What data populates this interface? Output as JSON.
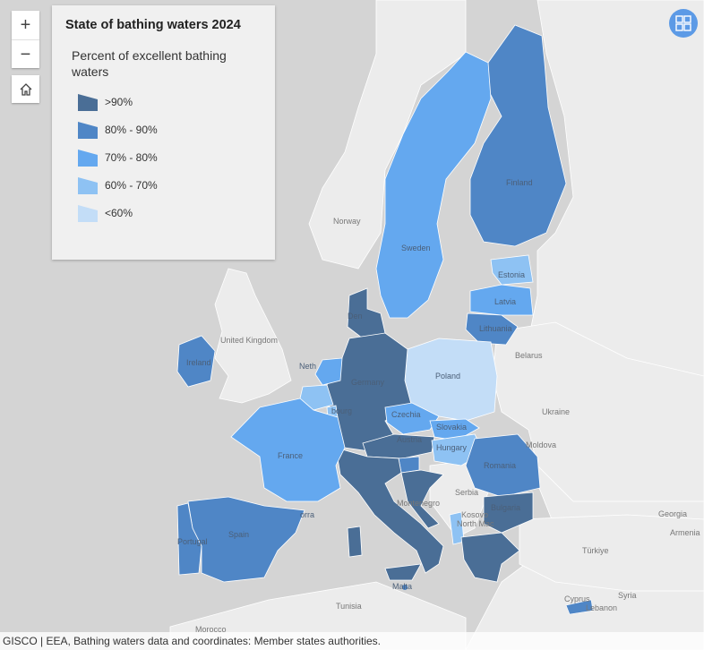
{
  "legend": {
    "title": "State of bathing waters 2024",
    "subtitle": "Percent of excellent bathing waters",
    "classes": [
      {
        "label": ">90%",
        "color": "#4a6e96"
      },
      {
        "label": "80% - 90%",
        "color": "#4f86c6"
      },
      {
        "label": "70% - 80%",
        "color": "#64a8ef"
      },
      {
        "label": "60% - 70%",
        "color": "#8ec2f3"
      },
      {
        "label": "<60%",
        "color": "#c3ddf7"
      }
    ]
  },
  "controls": {
    "zoom_in": "+",
    "zoom_out": "−"
  },
  "attribution": "GISCO | EEA, Bathing waters data and coordinates: Member states authorities.",
  "map_labels": {
    "norway": "Norway",
    "sweden": "Sweden",
    "finland": "Finland",
    "estonia": "Estonia",
    "latvia": "Latvia",
    "lithuania": "Lithuania",
    "united_kingdom": "United Kingdom",
    "ireland": "Ireland",
    "netherlands": "Neth",
    "belarus": "Belarus",
    "poland": "Poland",
    "germany": "Germany",
    "czechia": "Czechia",
    "slovakia": "Slovakia",
    "austria": "Austria",
    "hungary": "Hungary",
    "ukraine": "Ukraine",
    "moldova": "Moldova",
    "romania": "Romania",
    "serbia": "Serbia",
    "bulgaria": "Bulgaria",
    "france": "France",
    "luxembourg": "bourg",
    "andorra": "orra",
    "spain": "Spain",
    "portugal": "Portugal",
    "montenegro": "Montenegro",
    "kosovo": "Kosovo",
    "north_macedonia": "North Mac",
    "georgia": "Georgia",
    "turkiye": "Türkiye",
    "armenia": "Armenia",
    "syria": "Syria",
    "lebanon": "Lebanon",
    "cyprus": "Cyprus",
    "malta": "Malta",
    "tunisia": "Tunisia",
    "morocco": "Morocco",
    "denmark": "Den"
  },
  "choropleth": {
    "Finland": "80% - 90%",
    "Sweden": "70% - 80%",
    "Estonia": "60% - 70%",
    "Latvia": "70% - 80%",
    "Lithuania": "80% - 90%",
    "Denmark": ">90%",
    "Germany": ">90%",
    "Poland": "<60%",
    "Czechia": "70% - 80%",
    "Slovakia": "70% - 80%",
    "Hungary": "60% - 70%",
    "Austria": ">90%",
    "Slovenia": "80% - 90%",
    "Croatia": ">90%",
    "Romania": "80% - 90%",
    "Bulgaria": ">90%",
    "Greece": ">90%",
    "Italy": ">90%",
    "France": "70% - 80%",
    "Spain": "80% - 90%",
    "Portugal": "80% - 90%",
    "Ireland": "80% - 90%",
    "Netherlands": "70% - 80%",
    "Belgium": "60% - 70%",
    "Luxembourg": "60% - 70%",
    "Albania": "60% - 70%",
    "Malta": "80% - 90%",
    "Cyprus": "80% - 90%"
  }
}
